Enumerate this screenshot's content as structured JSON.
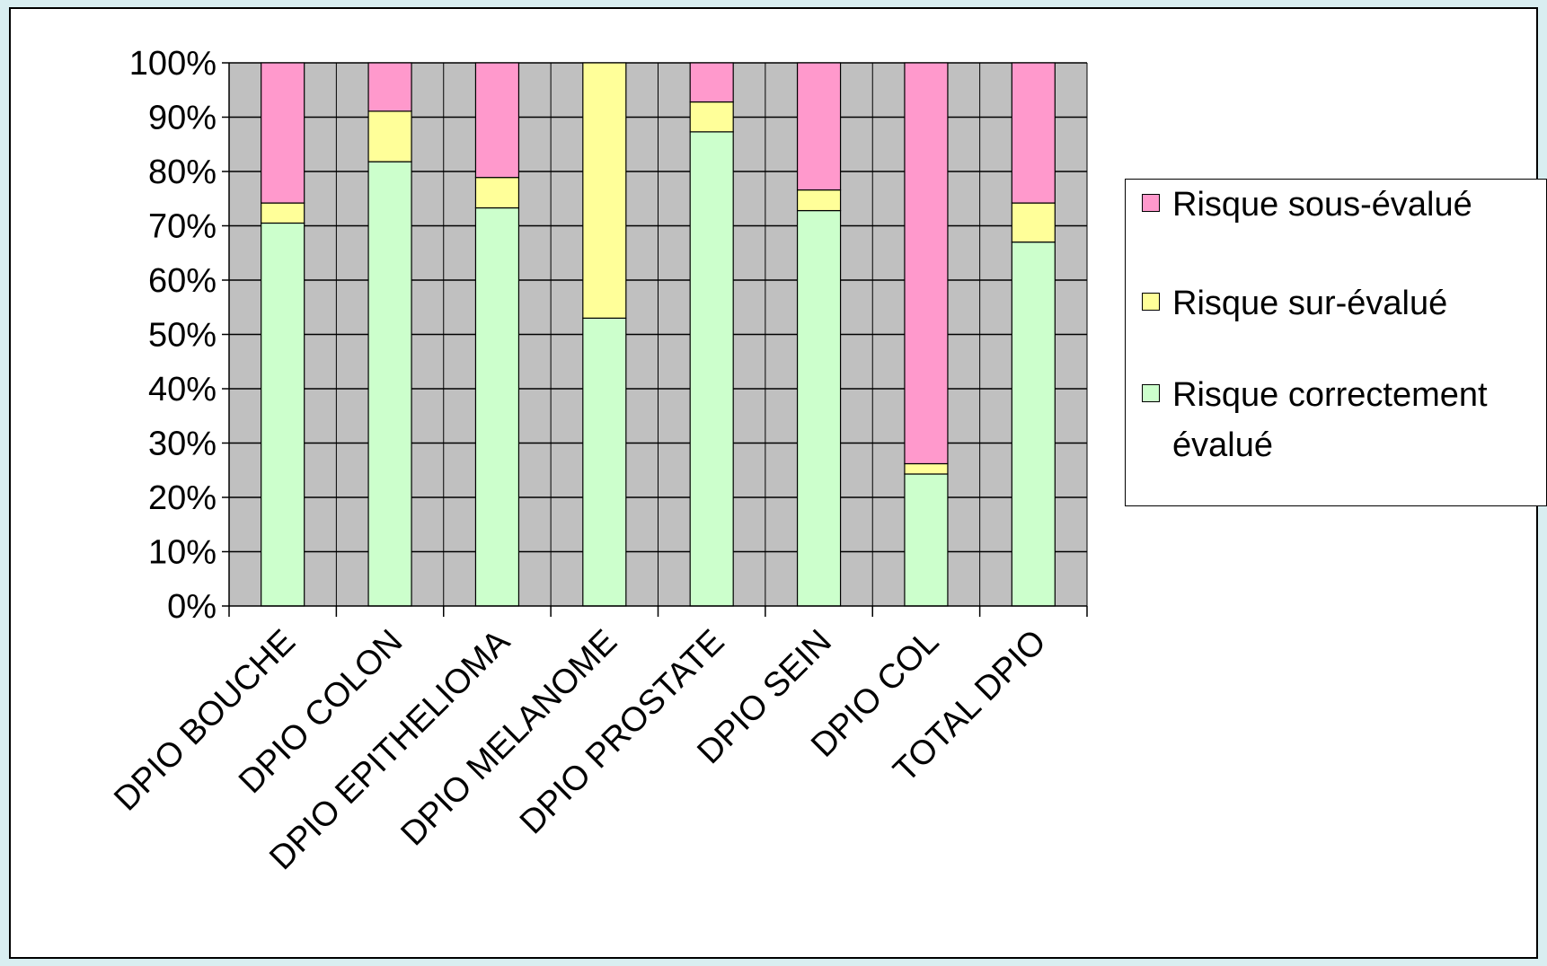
{
  "chart_data": {
    "type": "bar",
    "stacked": "100%",
    "categories": [
      "DPIO BOUCHE",
      "DPIO COLON",
      "DPIO EPITHELIOMA",
      "DPIO MELANOME",
      "DPIO PROSTATE",
      "DPIO SEIN",
      "DPIO COL",
      "TOTAL DPIO"
    ],
    "series": [
      {
        "name": "Risque correctement évalué",
        "color": "#ccffcc",
        "values": [
          70.5,
          81.8,
          73.3,
          53.0,
          87.3,
          72.8,
          24.3,
          67.0
        ]
      },
      {
        "name": "Risque sur-évalué",
        "color": "#ffff99",
        "values": [
          3.7,
          9.3,
          5.6,
          47.0,
          5.5,
          3.8,
          1.9,
          7.2
        ]
      },
      {
        "name": "Risque sous-évalué",
        "color": "#ff99cc",
        "values": [
          25.8,
          8.9,
          21.1,
          0.0,
          7.2,
          23.4,
          73.8,
          25.8
        ]
      }
    ],
    "yticks": [
      "0%",
      "10%",
      "20%",
      "30%",
      "40%",
      "50%",
      "60%",
      "70%",
      "80%",
      "90%",
      "100%"
    ],
    "ylim": [
      0,
      100
    ],
    "plot_background": "#c0c0c0",
    "grid": true,
    "legend_position": "right",
    "legend_order": [
      "Risque sous-évalué",
      "Risque sur-évalué",
      "Risque correctement évalué"
    ]
  }
}
